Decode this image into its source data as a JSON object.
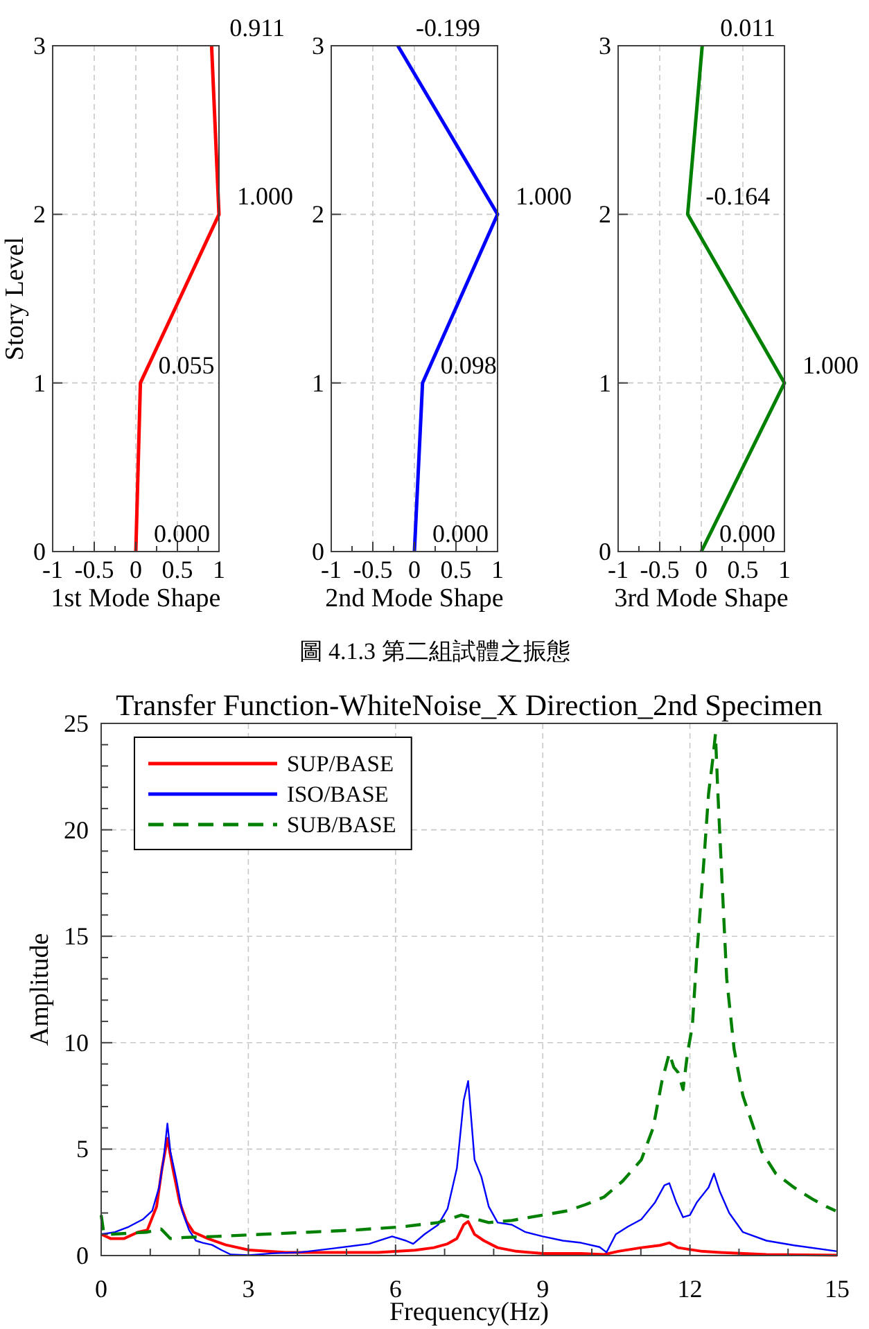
{
  "chart_data": [
    {
      "type": "line",
      "xlabel": "1st Mode Shape",
      "ylabel": "Story Level",
      "xlim": [
        -1,
        1
      ],
      "xticks": [
        -1,
        {
          "value": -0.75,
          "label": null
        },
        -0.5,
        {
          "value": -0.25,
          "label": null
        },
        0,
        {
          "value": 0.25,
          "label": null
        },
        0.5,
        {
          "value": 0.75,
          "label": null
        },
        1
      ],
      "ylim": [
        0,
        3
      ],
      "yticks": [
        0,
        1,
        2,
        3
      ],
      "grid": true,
      "series": [
        {
          "color": "#ff0000",
          "x": [
            0,
            0.055,
            1,
            0.911
          ],
          "values": [
            0,
            1,
            2,
            3
          ]
        }
      ],
      "annotations": [
        {
          "text": "0.000",
          "x": 0,
          "y": 0
        },
        {
          "text": "0.055",
          "x": 0.055,
          "y": 1
        },
        {
          "text": "1.000",
          "x": 1,
          "y": 2
        },
        {
          "text": "0.911",
          "x": 0.911,
          "y": 3
        }
      ]
    },
    {
      "type": "line",
      "xlabel": "2nd Mode Shape",
      "xlim": [
        -1,
        1
      ],
      "xticks": [
        -1,
        {
          "value": -0.75,
          "label": null
        },
        -0.5,
        {
          "value": -0.25,
          "label": null
        },
        0,
        {
          "value": 0.25,
          "label": null
        },
        0.5,
        {
          "value": 0.75,
          "label": null
        },
        1
      ],
      "ylim": [
        0,
        3
      ],
      "yticks": [
        0,
        1,
        2,
        3
      ],
      "grid": true,
      "series": [
        {
          "color": "#0000ff",
          "x": [
            0,
            0.098,
            1,
            -0.199
          ],
          "values": [
            0,
            1,
            2,
            3
          ]
        }
      ],
      "annotations": [
        {
          "text": "0.000",
          "x": 0,
          "y": 0
        },
        {
          "text": "0.098",
          "x": 0.098,
          "y": 1
        },
        {
          "text": "1.000",
          "x": 1,
          "y": 2
        },
        {
          "text": "-0.199",
          "x": -0.199,
          "y": 3
        },
        "圖 4.1.3 第二組試體之振態"
      ]
    },
    {
      "type": "line",
      "xlabel": "3rd Mode Shape",
      "xlim": [
        -1,
        1
      ],
      "xticks": [
        -1,
        {
          "value": -0.75,
          "label": null
        },
        -0.5,
        {
          "value": -0.25,
          "label": null
        },
        0,
        {
          "value": 0.25,
          "label": null
        },
        0.5,
        {
          "value": 0.75,
          "label": null
        },
        1
      ],
      "ylim": [
        0,
        3
      ],
      "yticks": [
        0,
        1,
        2,
        3
      ],
      "grid": true,
      "series": [
        {
          "color": "#008000",
          "x": [
            0,
            1,
            -0.164,
            0.011
          ],
          "values": [
            0,
            1,
            2,
            3
          ]
        }
      ],
      "annotations": [
        {
          "text": "0.000",
          "x": 0,
          "y": 0
        },
        {
          "text": "1.000",
          "x": 1,
          "y": 1
        },
        {
          "text": "-0.164",
          "x": -0.164,
          "y": 2
        },
        {
          "text": "0.011",
          "x": 0.011,
          "y": 3
        }
      ]
    },
    {
      "type": "line",
      "title": "Transfer Function-WhiteNoise_X Direction_2nd Specimen",
      "xlabel": "Frequency(Hz)",
      "ylabel": "Amplitude",
      "xlim": [
        0,
        15
      ],
      "xticks": [
        0,
        {
          "value": 1,
          "label": null
        },
        {
          "value": 2,
          "label": null
        },
        3,
        {
          "value": 4,
          "label": null
        },
        {
          "value": 5,
          "label": null
        },
        6,
        {
          "value": 7,
          "label": null
        },
        {
          "value": 8,
          "label": null
        },
        9,
        {
          "value": 10,
          "label": null
        },
        {
          "value": 11,
          "label": null
        },
        12,
        {
          "value": 13,
          "label": null
        },
        {
          "value": 14,
          "label": null
        },
        15
      ],
      "ylim": [
        0,
        25
      ],
      "yticks": [
        0,
        {
          "value": 1,
          "label": null
        },
        {
          "value": 2,
          "label": null
        },
        {
          "value": 3,
          "label": null
        },
        {
          "value": 4,
          "label": null
        },
        5,
        {
          "value": 6,
          "label": null
        },
        {
          "value": 7,
          "label": null
        },
        {
          "value": 8,
          "label": null
        },
        {
          "value": 9,
          "label": null
        },
        10,
        {
          "value": 11,
          "label": null
        },
        {
          "value": 12,
          "label": null
        },
        {
          "value": 13,
          "label": null
        },
        {
          "value": 14,
          "label": null
        },
        15,
        {
          "value": 16,
          "label": null
        },
        {
          "value": 17,
          "label": null
        },
        {
          "value": 18,
          "label": null
        },
        {
          "value": 19,
          "label": null
        },
        20,
        {
          "value": 21,
          "label": null
        },
        {
          "value": 22,
          "label": null
        },
        {
          "value": 23,
          "label": null
        },
        {
          "value": 24,
          "label": null
        },
        25
      ],
      "grid": true,
      "legend": "top left",
      "series": [
        {
          "name": "SUP/BASE",
          "color": "#ff0000",
          "line_style": "solid",
          "x": [
            0,
            0.19,
            0.47,
            0.75,
            0.94,
            1.13,
            1.24,
            1.35,
            1.46,
            1.6,
            1.74,
            1.88,
            2.17,
            2.54,
            3.01,
            3.77,
            4.71,
            5.65,
            6.4,
            6.78,
            7.06,
            7.25,
            7.39,
            7.48,
            7.61,
            7.8,
            8.08,
            8.46,
            9,
            9.78,
            10.25,
            10.54,
            11.01,
            11.39,
            11.58,
            11.76,
            12.24,
            12.61,
            13.56,
            15
          ],
          "values": [
            1.0,
            0.8,
            0.8,
            1.1,
            1.2,
            2.3,
            4.1,
            5.5,
            4.1,
            2.5,
            1.6,
            1.1,
            0.8,
            0.5,
            0.26,
            0.15,
            0.15,
            0.15,
            0.25,
            0.37,
            0.55,
            0.8,
            1.45,
            1.6,
            1.0,
            0.7,
            0.37,
            0.2,
            0.1,
            0.1,
            0.05,
            0.2,
            0.37,
            0.48,
            0.6,
            0.37,
            0.2,
            0.15,
            0.05,
            0.02
          ]
        },
        {
          "name": "ISO/BASE",
          "color": "#0000ff",
          "line_style": "solid",
          "x": [
            0,
            0.28,
            0.56,
            0.85,
            1.04,
            1.18,
            1.27,
            1.35,
            1.41,
            1.53,
            1.65,
            1.79,
            1.93,
            2.07,
            2.26,
            2.45,
            2.64,
            3.01,
            3.48,
            4.05,
            4.71,
            5.46,
            5.93,
            6.21,
            6.36,
            6.59,
            6.87,
            7.06,
            7.25,
            7.39,
            7.48,
            7.54,
            7.61,
            7.75,
            7.9,
            8.08,
            8.37,
            8.65,
            9,
            9.41,
            9.78,
            10.16,
            10.3,
            10.49,
            10.73,
            11.01,
            11.29,
            11.48,
            11.58,
            11.72,
            11.86,
            12,
            12.14,
            12.38,
            12.49,
            12.61,
            12.8,
            13.08,
            13.56,
            14.12,
            15
          ],
          "values": [
            1.0,
            1.1,
            1.35,
            1.7,
            2.1,
            3.2,
            4.5,
            6.2,
            4.9,
            3.6,
            2.1,
            1.2,
            0.7,
            0.6,
            0.5,
            0.26,
            0.05,
            0.02,
            0.1,
            0.15,
            0.33,
            0.55,
            0.9,
            0.7,
            0.55,
            1.0,
            1.45,
            2.2,
            4.1,
            7.3,
            8.2,
            6.5,
            4.5,
            3.7,
            2.3,
            1.55,
            1.45,
            1.1,
            0.9,
            0.7,
            0.6,
            0.4,
            0.15,
            1.0,
            1.35,
            1.7,
            2.5,
            3.3,
            3.4,
            2.5,
            1.8,
            1.9,
            2.5,
            3.2,
            3.85,
            3.0,
            2.0,
            1.1,
            0.7,
            0.48,
            0.2
          ]
        },
        {
          "name": "SUB/BASE",
          "color": "#008000",
          "line_style": "dashed",
          "x": [
            0,
            0.05,
            0.19,
            0.94,
            1.22,
            1.41,
            1.69,
            2.35,
            3.3,
            4.24,
            5.18,
            6.12,
            6.87,
            7.34,
            7.9,
            8.37,
            9,
            9.5,
            9.88,
            10.25,
            10.63,
            11.01,
            11.25,
            11.43,
            11.58,
            11.67,
            11.76,
            11.86,
            11.95,
            12.05,
            12.14,
            12.28,
            12.38,
            12.47,
            12.52,
            12.57,
            12.66,
            12.75,
            12.9,
            13.08,
            13.27,
            13.46,
            13.75,
            14.12,
            14.5,
            14.78,
            14.97
          ],
          "values": [
            1.9,
            1.1,
            1.0,
            1.1,
            1.25,
            0.8,
            0.85,
            0.9,
            1.0,
            1.1,
            1.2,
            1.35,
            1.55,
            1.9,
            1.55,
            1.65,
            1.9,
            2.1,
            2.4,
            2.75,
            3.5,
            4.5,
            6.0,
            8.2,
            9.5,
            8.85,
            8.6,
            7.8,
            9.5,
            10.8,
            14.1,
            18.4,
            21.7,
            23.4,
            24.5,
            21.7,
            17.3,
            13.0,
            9.7,
            7.5,
            6.2,
            4.9,
            3.85,
            3.2,
            2.65,
            2.3,
            2.1
          ]
        }
      ]
    }
  ]
}
